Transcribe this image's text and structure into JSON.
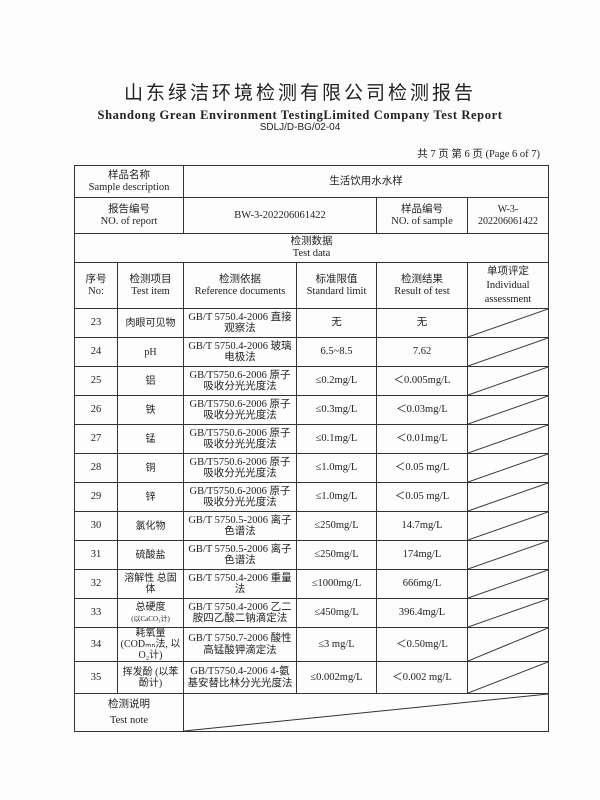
{
  "header": {
    "title_cn": "山东绿洁环境检测有限公司检测报告",
    "title_en": "Shandong Grean Environment TestingLimited Company Test Report",
    "doc_code": "SDLJ/D-BG/02-04",
    "page_info": "共 7 页 第 6 页 (Page 6 of 7)"
  },
  "info": {
    "sample_desc_cn": "样品名称",
    "sample_desc_en": "Sample description",
    "sample_desc_value": "生活饮用水水样",
    "report_no_cn": "报告编号",
    "report_no_en": "NO. of report",
    "report_no_value": "BW-3-202206061422",
    "sample_no_cn": "样品编号",
    "sample_no_en": "NO. of sample",
    "sample_no_value": "W-3-202206061422"
  },
  "section": {
    "cn": "检测数据",
    "en": "Test data"
  },
  "columns": [
    {
      "cn": "序号",
      "en": "No:"
    },
    {
      "cn": "检测项目",
      "en": "Test item"
    },
    {
      "cn": "检测依据",
      "en": "Reference documents"
    },
    {
      "cn": "标准限值",
      "en": "Standard limit"
    },
    {
      "cn": "检测结果",
      "en": "Result of test"
    },
    {
      "cn": "单项评定",
      "en": "Individual assessment"
    }
  ],
  "rows": [
    {
      "no": "23",
      "item": "肉眼可见物",
      "ref": "GB/T 5750.4-2006 直接观察法",
      "limit": "无",
      "result": "无"
    },
    {
      "no": "24",
      "item": "pH",
      "ref": "GB/T 5750.4-2006 玻璃电极法",
      "limit": "6.5~8.5",
      "result": "7.62"
    },
    {
      "no": "25",
      "item": "铝",
      "ref": "GB/T5750.6-2006 原子吸收分光光度法",
      "limit": "≤0.2mg/L",
      "result": "＜0.005mg/L"
    },
    {
      "no": "26",
      "item": "铁",
      "ref": "GB/T5750.6-2006 原子吸收分光光度法",
      "limit": "≤0.3mg/L",
      "result": "＜0.03mg/L"
    },
    {
      "no": "27",
      "item": "锰",
      "ref": "GB/T5750.6-2006 原子吸收分光光度法",
      "limit": "≤0.1mg/L",
      "result": "＜0.01mg/L"
    },
    {
      "no": "28",
      "item": "铜",
      "ref": "GB/T5750.6-2006 原子吸收分光光度法",
      "limit": "≤1.0mg/L",
      "result": "＜0.05 mg/L"
    },
    {
      "no": "29",
      "item": "锌",
      "ref": "GB/T5750.6-2006 原子吸收分光光度法",
      "limit": "≤1.0mg/L",
      "result": "＜0.05 mg/L"
    },
    {
      "no": "30",
      "item": "氯化物",
      "ref": "GB/T 5750.5-2006 离子色谱法",
      "limit": "≤250mg/L",
      "result": "14.7mg/L"
    },
    {
      "no": "31",
      "item": "硫酸盐",
      "ref": "GB/T 5750.5-2006 离子色谱法",
      "limit": "≤250mg/L",
      "result": "174mg/L"
    },
    {
      "no": "32",
      "item": "溶解性 总固体",
      "ref": "GB/T 5750.4-2006 重量法",
      "limit": "≤1000mg/L",
      "result": "666mg/L"
    },
    {
      "no": "33",
      "item": "总硬度",
      "item_note": "(以CaCO₃计)",
      "ref": "GB/T 5750.4-2006 乙二胺四乙酸二钠滴定法",
      "limit": "≤450mg/L",
      "result": "396.4mg/L"
    },
    {
      "no": "34",
      "item": "耗氧量 (CODₘₙ法, 以O₂计)",
      "ref": "GB/T 5750.7-2006 酸性高锰酸钾滴定法",
      "limit": "≤3 mg/L",
      "result": "＜0.50mg/L"
    },
    {
      "no": "35",
      "item": "挥发酚 (以苯酚计)",
      "ref": "GB/T5750.4-2006 4-氨基安替比林分光光度法",
      "limit": "≤0.002mg/L",
      "result": "＜0.002 mg/L"
    }
  ],
  "note": {
    "cn": "检测说明",
    "en": "Test note"
  }
}
